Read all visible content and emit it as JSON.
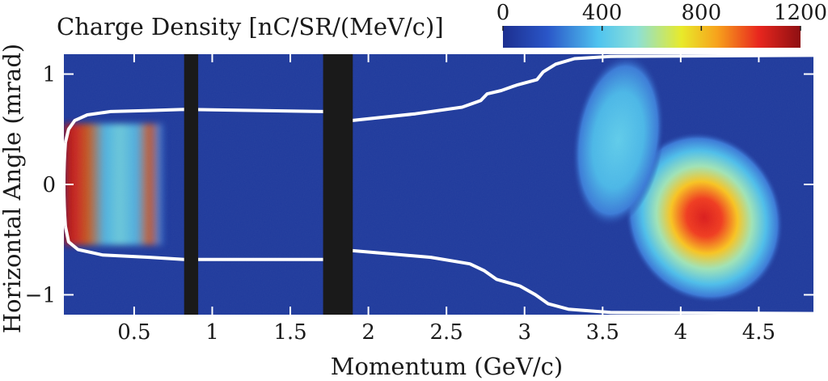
{
  "chart_data": {
    "type": "heatmap",
    "title": "Charge Density [nC/SR/(MeV/c)]",
    "xlabel": "Momentum (GeV/c)",
    "ylabel": "Horizontal Angle (mrad)",
    "xlim": [
      0.05,
      4.85
    ],
    "ylim": [
      -1.18,
      1.18
    ],
    "x_ticks": [
      0.5,
      1,
      1.5,
      2,
      2.5,
      3,
      3.5,
      4,
      4.5
    ],
    "x_tick_labels": [
      "0.5",
      "1",
      "1.5",
      "2",
      "2.5",
      "3",
      "3.5",
      "4",
      "4.5"
    ],
    "y_ticks": [
      1,
      0,
      -1
    ],
    "y_tick_labels": [
      "1",
      "0",
      "−1"
    ],
    "colorbar": {
      "range": [
        0,
        1200
      ],
      "ticks": [
        0,
        400,
        800,
        1200
      ],
      "tick_labels": [
        "0",
        "400",
        "800",
        "1200"
      ],
      "colormap": "jet",
      "placement": "top-right"
    },
    "colors": {
      "background": "#1f3a9c",
      "aperture_outline": "#ffffff",
      "blocked_region": "#1a1a1a"
    },
    "blocked_momentum_ranges": [
      [
        0.82,
        0.91
      ],
      [
        1.71,
        1.9
      ]
    ],
    "aperture_limit_upper": [
      [
        0.06,
        0.38
      ],
      [
        0.08,
        0.5
      ],
      [
        0.12,
        0.58
      ],
      [
        0.2,
        0.63
      ],
      [
        0.35,
        0.66
      ],
      [
        0.6,
        0.67
      ],
      [
        0.82,
        0.68
      ],
      [
        1.71,
        0.66
      ],
      [
        1.9,
        0.58
      ],
      [
        2.3,
        0.64
      ],
      [
        2.6,
        0.7
      ],
      [
        2.72,
        0.76
      ],
      [
        2.76,
        0.82
      ],
      [
        2.85,
        0.85
      ],
      [
        2.95,
        0.9
      ],
      [
        3.08,
        0.95
      ],
      [
        3.12,
        1.02
      ],
      [
        3.2,
        1.09
      ],
      [
        3.32,
        1.14
      ],
      [
        3.55,
        1.16
      ],
      [
        4.85,
        1.17
      ]
    ],
    "aperture_limit_lower": [
      [
        0.06,
        -0.38
      ],
      [
        0.08,
        -0.52
      ],
      [
        0.14,
        -0.59
      ],
      [
        0.3,
        -0.64
      ],
      [
        0.6,
        -0.66
      ],
      [
        0.82,
        -0.68
      ],
      [
        1.71,
        -0.68
      ],
      [
        1.9,
        -0.6
      ],
      [
        2.4,
        -0.66
      ],
      [
        2.65,
        -0.72
      ],
      [
        2.74,
        -0.78
      ],
      [
        2.82,
        -0.86
      ],
      [
        2.97,
        -0.92
      ],
      [
        3.07,
        -1.0
      ],
      [
        3.15,
        -1.08
      ],
      [
        3.28,
        -1.13
      ],
      [
        3.55,
        -1.16
      ],
      [
        4.85,
        -1.17
      ]
    ],
    "charge_density_features": [
      {
        "feature": "low-momentum band",
        "momentum_range": [
          0.05,
          0.7
        ],
        "angle_range": [
          -0.55,
          0.55
        ],
        "peak_value": 1200
      },
      {
        "feature": "main peak",
        "momentum": 4.15,
        "angle": -0.3,
        "peak_value": 1150
      },
      {
        "feature": "upper tail",
        "momentum": 3.6,
        "angle": 0.4,
        "peak_value": 420
      }
    ]
  }
}
